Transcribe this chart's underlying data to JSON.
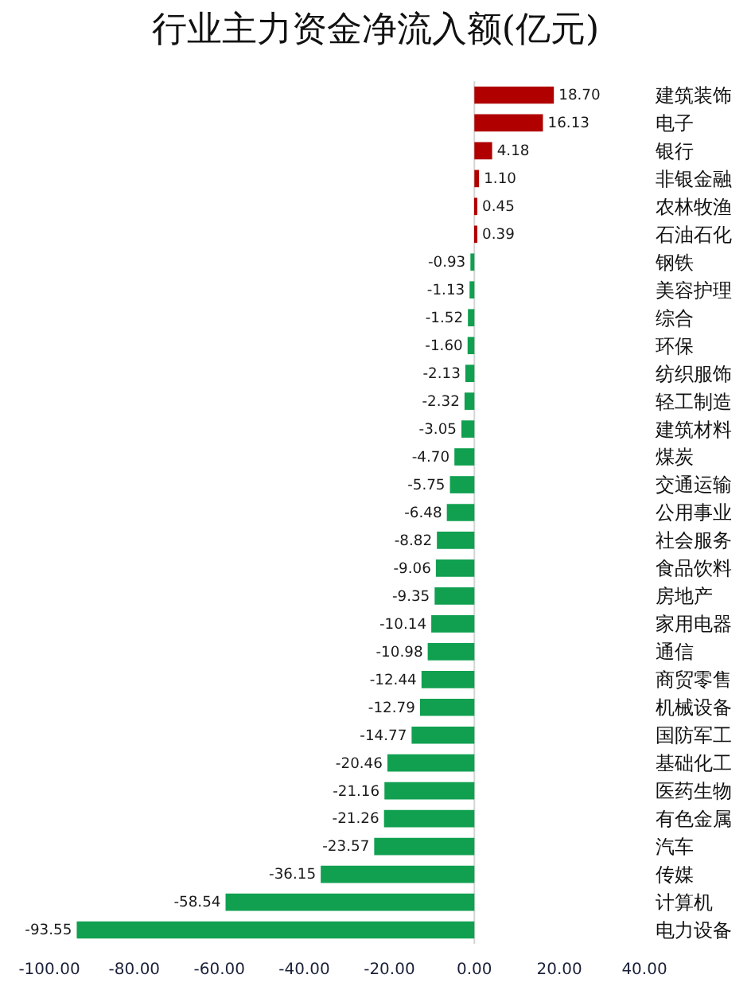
{
  "chart_data": {
    "type": "bar",
    "orientation": "horizontal",
    "title": "行业主力资金净流入额(亿元)",
    "categories": [
      "建筑装饰",
      "电子",
      "银行",
      "非银金融",
      "农林牧渔",
      "石油石化",
      "钢铁",
      "美容护理",
      "综合",
      "环保",
      "纺织服饰",
      "轻工制造",
      "建筑材料",
      "煤炭",
      "交通运输",
      "公用事业",
      "社会服务",
      "食品饮料",
      "房地产",
      "家用电器",
      "通信",
      "商贸零售",
      "机械设备",
      "国防军工",
      "基础化工",
      "医药生物",
      "有色金属",
      "汽车",
      "传媒",
      "计算机",
      "电力设备"
    ],
    "values": [
      18.7,
      16.13,
      4.18,
      1.1,
      0.45,
      0.39,
      -0.93,
      -1.13,
      -1.52,
      -1.6,
      -2.13,
      -2.32,
      -3.05,
      -4.7,
      -5.75,
      -6.48,
      -8.82,
      -9.06,
      -9.35,
      -10.14,
      -10.98,
      -12.44,
      -12.79,
      -14.77,
      -20.46,
      -21.16,
      -21.26,
      -23.57,
      -36.15,
      -58.54,
      -93.55
    ],
    "value_labels": [
      "18.70",
      "16.13",
      "4.18",
      "1.10",
      "0.45",
      "0.39",
      "-0.93",
      "-1.13",
      "-1.52",
      "-1.60",
      "-2.13",
      "-2.32",
      "-3.05",
      "-4.70",
      "-5.75",
      "-6.48",
      "-8.82",
      "-9.06",
      "-9.35",
      "-10.14",
      "-10.98",
      "-12.44",
      "-12.79",
      "-14.77",
      "-20.46",
      "-21.16",
      "-21.26",
      "-23.57",
      "-36.15",
      "-58.54",
      "-93.55"
    ],
    "colors": [
      "#b00000",
      "#b00000",
      "#b00000",
      "#b00000",
      "#b00000",
      "#b00000",
      "#10a050",
      "#10a050",
      "#10a050",
      "#10a050",
      "#10a050",
      "#10a050",
      "#10a050",
      "#10a050",
      "#10a050",
      "#10a050",
      "#10a050",
      "#10a050",
      "#10a050",
      "#10a050",
      "#10a050",
      "#10a050",
      "#10a050",
      "#10a050",
      "#10a050",
      "#10a050",
      "#10a050",
      "#10a050",
      "#10a050",
      "#10a050",
      "#10a050"
    ],
    "xlim": [
      -100,
      40
    ],
    "xticks": [
      {
        "value": -100,
        "label": "-100.00"
      },
      {
        "value": -80,
        "label": "-80.00"
      },
      {
        "value": -60,
        "label": "-60.00"
      },
      {
        "value": -40,
        "label": "-40.00"
      },
      {
        "value": -20,
        "label": "-20.00"
      },
      {
        "value": 0,
        "label": "0.00"
      },
      {
        "value": 20,
        "label": "20.00"
      },
      {
        "value": 40,
        "label": "40.00"
      }
    ],
    "ref_lines": [
      {
        "axis": "x",
        "value": 0,
        "color": "#d4d4d4"
      }
    ]
  }
}
